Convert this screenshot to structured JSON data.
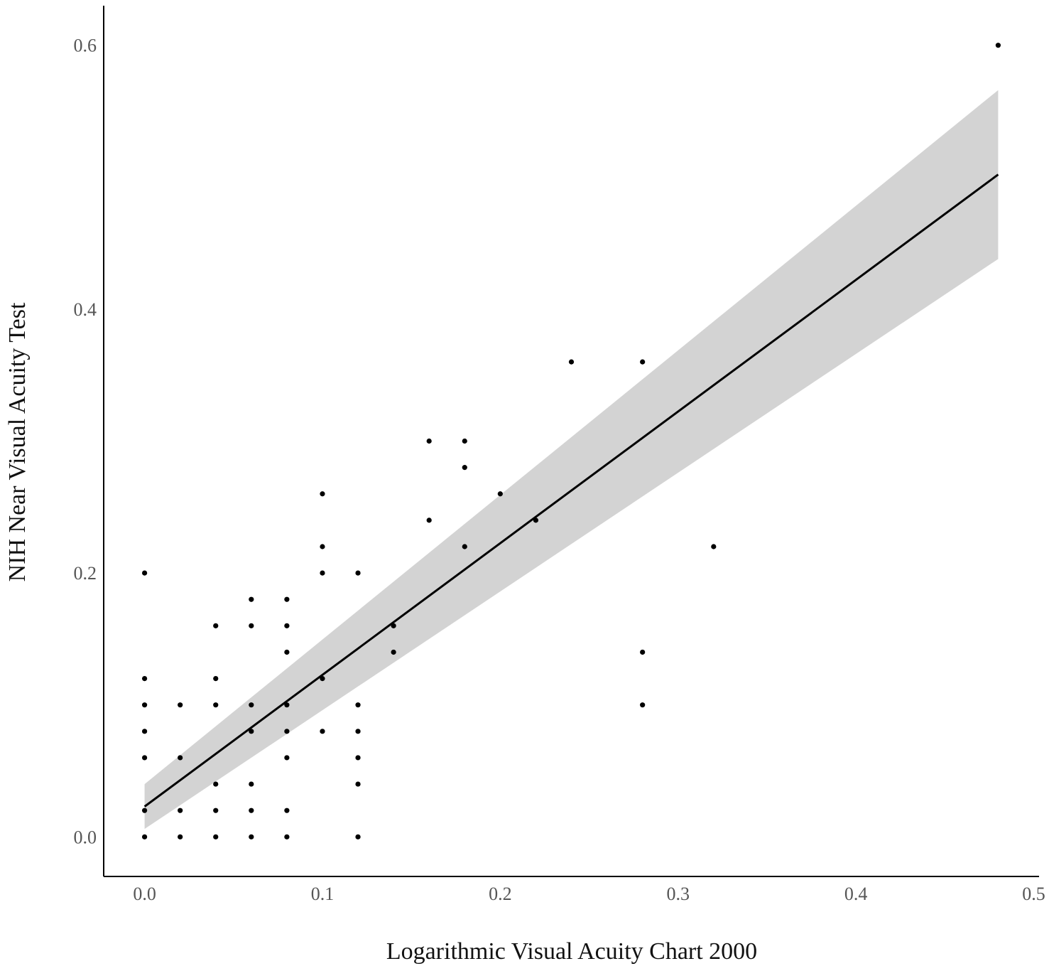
{
  "chart_data": {
    "type": "scatter",
    "title": "",
    "xlabel": "Logarithmic Visual Acuity Chart 2000",
    "ylabel": "NIH Near Visual Acuity Test",
    "xlim": [
      -0.023,
      0.503
    ],
    "ylim": [
      -0.03,
      0.63
    ],
    "x_ticks": [
      0.0,
      0.1,
      0.2,
      0.3,
      0.4,
      0.5
    ],
    "x_tick_labels": [
      "0.0",
      "0.1",
      "0.2",
      "0.3",
      "0.4",
      "0.5"
    ],
    "y_ticks": [
      0.0,
      0.2,
      0.4,
      0.6
    ],
    "y_tick_labels": [
      "0.0",
      "0.2",
      "0.4",
      "0.6"
    ],
    "grid": false,
    "legend": "none",
    "colors": {
      "points": "#000000",
      "fit_line": "#000000",
      "confidence_band": "#d3d3d3",
      "axis": "#000000",
      "tick_label": "#555555"
    },
    "points": [
      {
        "x": 0.0,
        "y": 0.0
      },
      {
        "x": 0.0,
        "y": 0.02
      },
      {
        "x": 0.0,
        "y": 0.06
      },
      {
        "x": 0.0,
        "y": 0.08
      },
      {
        "x": 0.0,
        "y": 0.1
      },
      {
        "x": 0.0,
        "y": 0.12
      },
      {
        "x": 0.0,
        "y": 0.2
      },
      {
        "x": 0.02,
        "y": 0.0
      },
      {
        "x": 0.02,
        "y": 0.02
      },
      {
        "x": 0.02,
        "y": 0.06
      },
      {
        "x": 0.02,
        "y": 0.1
      },
      {
        "x": 0.04,
        "y": 0.0
      },
      {
        "x": 0.04,
        "y": 0.02
      },
      {
        "x": 0.04,
        "y": 0.04
      },
      {
        "x": 0.04,
        "y": 0.1
      },
      {
        "x": 0.04,
        "y": 0.12
      },
      {
        "x": 0.04,
        "y": 0.16
      },
      {
        "x": 0.06,
        "y": 0.0
      },
      {
        "x": 0.06,
        "y": 0.02
      },
      {
        "x": 0.06,
        "y": 0.04
      },
      {
        "x": 0.06,
        "y": 0.08
      },
      {
        "x": 0.06,
        "y": 0.1
      },
      {
        "x": 0.06,
        "y": 0.16
      },
      {
        "x": 0.06,
        "y": 0.18
      },
      {
        "x": 0.08,
        "y": 0.0
      },
      {
        "x": 0.08,
        "y": 0.02
      },
      {
        "x": 0.08,
        "y": 0.06
      },
      {
        "x": 0.08,
        "y": 0.08
      },
      {
        "x": 0.08,
        "y": 0.1
      },
      {
        "x": 0.08,
        "y": 0.14
      },
      {
        "x": 0.08,
        "y": 0.16
      },
      {
        "x": 0.08,
        "y": 0.18
      },
      {
        "x": 0.1,
        "y": 0.08
      },
      {
        "x": 0.1,
        "y": 0.12
      },
      {
        "x": 0.1,
        "y": 0.2
      },
      {
        "x": 0.1,
        "y": 0.22
      },
      {
        "x": 0.1,
        "y": 0.26
      },
      {
        "x": 0.12,
        "y": 0.0
      },
      {
        "x": 0.12,
        "y": 0.04
      },
      {
        "x": 0.12,
        "y": 0.06
      },
      {
        "x": 0.12,
        "y": 0.08
      },
      {
        "x": 0.12,
        "y": 0.1
      },
      {
        "x": 0.12,
        "y": 0.2
      },
      {
        "x": 0.14,
        "y": 0.14
      },
      {
        "x": 0.14,
        "y": 0.16
      },
      {
        "x": 0.16,
        "y": 0.24
      },
      {
        "x": 0.16,
        "y": 0.3
      },
      {
        "x": 0.18,
        "y": 0.22
      },
      {
        "x": 0.18,
        "y": 0.28
      },
      {
        "x": 0.18,
        "y": 0.3
      },
      {
        "x": 0.2,
        "y": 0.26
      },
      {
        "x": 0.22,
        "y": 0.24
      },
      {
        "x": 0.24,
        "y": 0.36
      },
      {
        "x": 0.28,
        "y": 0.1
      },
      {
        "x": 0.28,
        "y": 0.14
      },
      {
        "x": 0.28,
        "y": 0.36
      },
      {
        "x": 0.32,
        "y": 0.22
      },
      {
        "x": 0.48,
        "y": 0.6
      }
    ],
    "fit_line": {
      "x": [
        0.0,
        0.48
      ],
      "y": [
        0.023,
        0.502
      ]
    },
    "confidence_band": {
      "x": [
        0.0,
        0.48
      ],
      "upper": [
        0.04,
        0.566
      ],
      "lower": [
        0.006,
        0.438
      ]
    }
  }
}
